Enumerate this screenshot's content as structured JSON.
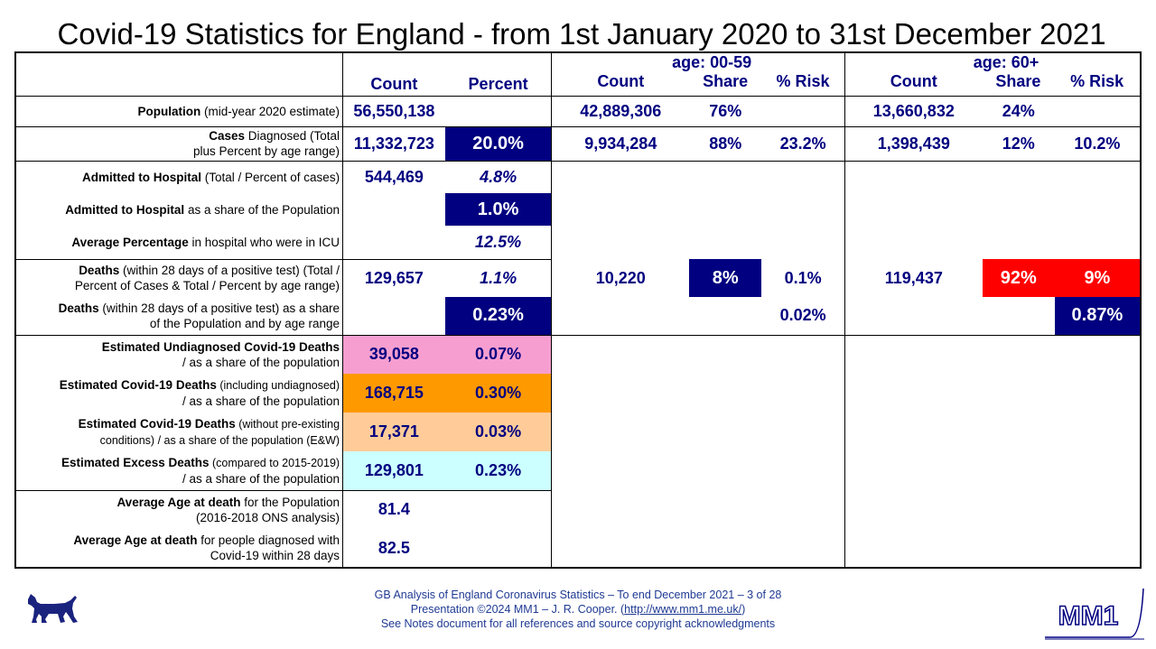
{
  "title": "Covid-19 Statistics for England - from 1st January 2020 to 31st December 2021",
  "headers": {
    "group_young": "age: 00-59",
    "group_old": "age: 60+",
    "count": "Count",
    "percent": "Percent",
    "share": "Share",
    "risk": "% Risk"
  },
  "rows": {
    "population": {
      "label_bold": "Population",
      "label_rest": " (mid-year 2020 estimate)",
      "count": "56,550,138",
      "y_count": "42,889,306",
      "y_share": "76%",
      "o_count": "13,660,832",
      "o_share": "24%"
    },
    "cases": {
      "label_bold": "Cases",
      "label_rest1": " Diagnosed (Total",
      "label_line2": "plus Percent by age range)",
      "count": "11,332,723",
      "percent": "20.0%",
      "y_count": "9,934,284",
      "y_share": "88%",
      "y_risk": "23.2%",
      "o_count": "1,398,439",
      "o_share": "12%",
      "o_risk": "10.2%"
    },
    "hospital": {
      "label_bold": "Admitted to Hospital",
      "label_rest": " (Total / Percent of cases)",
      "count": "544,469",
      "percent": "4.8%"
    },
    "hospital_share": {
      "label_bold": "Admitted to Hospital",
      "label_rest": " as a share of the Population",
      "percent": "1.0%"
    },
    "icu": {
      "label_bold": "Average Percentage",
      "label_rest": " in hospital who were in ICU",
      "percent": "12.5%"
    },
    "deaths": {
      "label_bold": "Deaths",
      "label_rest1": " (within 28 days of a positive test) (Total /",
      "label_line2": "Percent of Cases & Total / Percent by age range)",
      "count": "129,657",
      "percent": "1.1%",
      "y_count": "10,220",
      "y_share": "8%",
      "y_risk": "0.1%",
      "o_count": "119,437",
      "o_share": "92%",
      "o_risk": "9%"
    },
    "deaths_share": {
      "label_bold": "Deaths",
      "label_rest1": " (within 28 days of a positive test) as a share",
      "label_line2": "of the Population and by age range",
      "percent": "0.23%",
      "y_risk": "0.02%",
      "o_risk": "0.87%"
    },
    "undiagnosed": {
      "label_line1": "Estimated Undiagnosed Covid-19 Deaths",
      "label_line2": "/ as a share of the population",
      "count": "39,058",
      "percent": "0.07%"
    },
    "est_deaths": {
      "label_bold": "Estimated Covid-19 Deaths",
      "label_rest": " (including undiagnosed)",
      "label_line2": "/ as a share of the population",
      "count": "168,715",
      "percent": "0.30%"
    },
    "no_preexisting": {
      "label_bold": "Estimated Covid-19 Deaths",
      "label_rest": " (without pre-existing",
      "label_line2": "conditions) / as a share of the population (E&W)",
      "count": "17,371",
      "percent": "0.03%"
    },
    "excess": {
      "label_bold": "Estimated Excess Deaths",
      "label_rest": " (compared to 2015-2019)",
      "label_line2": "/ as a share of the population",
      "count": "129,801",
      "percent": "0.23%"
    },
    "avg_age_pop": {
      "label_bold": "Average Age at death",
      "label_rest": " for the Population",
      "label_line2": "(2016-2018 ONS analysis)",
      "count": "81.4"
    },
    "avg_age_diag": {
      "label_bold": "Average Age at death",
      "label_rest": " for people diagnosed with",
      "label_line2": "Covid-19 within 28 days",
      "count": "82.5"
    }
  },
  "footer": {
    "line1": "GB Analysis of England Coronavirus Statistics – To end December 2021 – 3 of 28",
    "line2_pre": "Presentation ©2024 MM1 – J. R. Cooper. (",
    "line2_link": "http://www.mm1.me.uk/",
    "line2_post": ")",
    "line3": "See Notes document for all references and source copyright acknowledgments"
  },
  "logo_text": "MM1",
  "colors": {
    "navy": "#000080",
    "red": "#ff0000",
    "pink": "#f79ed0",
    "orange": "#ff9900",
    "peach": "#ffcc99",
    "cyan": "#ccffff",
    "footer_blue": "#1f3a93"
  }
}
